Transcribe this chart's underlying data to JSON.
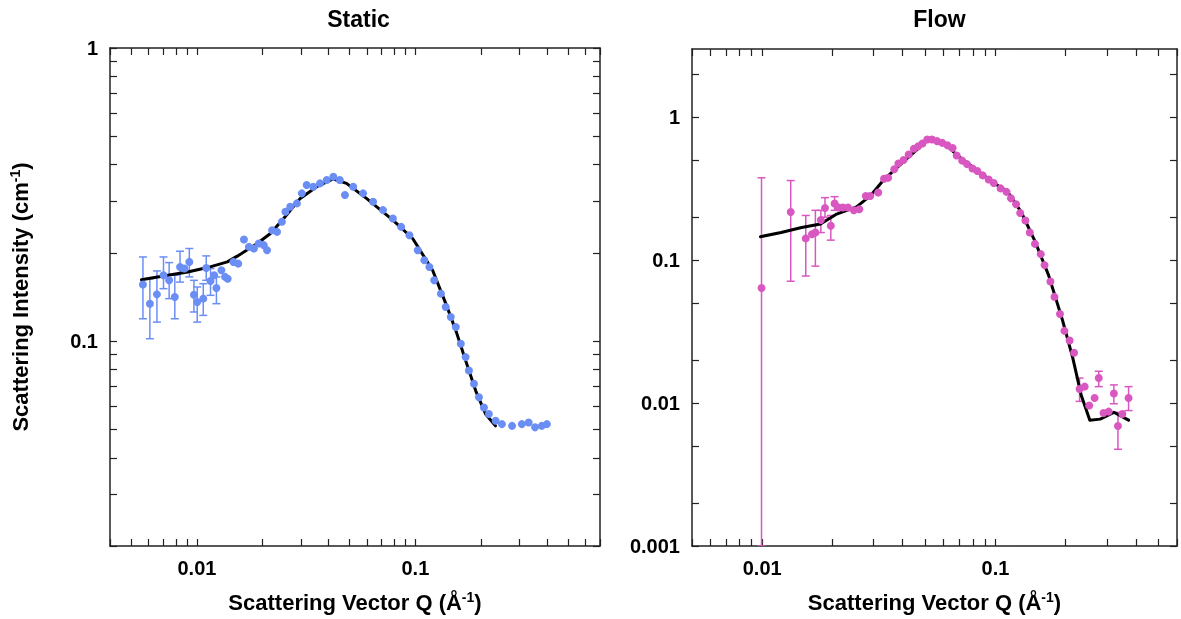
{
  "chart_data": [
    {
      "type": "scatter",
      "title": "Static",
      "xlabel": "Scattering Vector Q (Å$^{-1}$)",
      "ylabel": "Scattering Intensity (cm$^{-1}$)",
      "log": "xy",
      "marker": "circle",
      "xlim": [
        0.004,
        0.7
      ],
      "ylim": [
        0.02,
        1
      ],
      "xticks": [
        {
          "value": 0.004,
          "label": null
        },
        {
          "value": 0.005,
          "label": null
        },
        {
          "value": 0.006,
          "label": null
        },
        {
          "value": 0.007,
          "label": null
        },
        {
          "value": 0.008,
          "label": null
        },
        {
          "value": 0.009,
          "label": null
        },
        {
          "value": 0.01,
          "label": "0.01"
        },
        {
          "value": 0.02,
          "label": null
        },
        {
          "value": 0.03,
          "label": null
        },
        {
          "value": 0.04,
          "label": null
        },
        {
          "value": 0.05,
          "label": null
        },
        {
          "value": 0.06,
          "label": null
        },
        {
          "value": 0.07,
          "label": null
        },
        {
          "value": 0.08,
          "label": null
        },
        {
          "value": 0.09,
          "label": null
        },
        {
          "value": 0.1,
          "label": "0.1"
        },
        {
          "value": 0.2,
          "label": null
        },
        {
          "value": 0.3,
          "label": null
        },
        {
          "value": 0.4,
          "label": null
        },
        {
          "value": 0.5,
          "label": null
        },
        {
          "value": 0.6,
          "label": null
        },
        {
          "value": 0.7,
          "label": null
        }
      ],
      "yticks": [
        {
          "value": 0.02,
          "label": null
        },
        {
          "value": 0.03,
          "label": null
        },
        {
          "value": 0.04,
          "label": null
        },
        {
          "value": 0.05,
          "label": null
        },
        {
          "value": 0.06,
          "label": null
        },
        {
          "value": 0.07,
          "label": null
        },
        {
          "value": 0.08,
          "label": null
        },
        {
          "value": 0.09,
          "label": null
        },
        {
          "value": 0.1,
          "label": "0.1"
        },
        {
          "value": 0.2,
          "label": null
        },
        {
          "value": 0.3,
          "label": null
        },
        {
          "value": 0.4,
          "label": null
        },
        {
          "value": 0.5,
          "label": null
        },
        {
          "value": 0.6,
          "label": null
        },
        {
          "value": 0.7,
          "label": null
        },
        {
          "value": 0.8,
          "label": null
        },
        {
          "value": 0.9,
          "label": null
        },
        {
          "value": 1,
          "label": "1"
        }
      ],
      "series": [
        {
          "color": "#6b8ef5",
          "x": [
            0.00566,
            0.00609,
            0.00656,
            0.00703,
            0.00746,
            0.00792,
            0.00837,
            0.00876,
            0.00923,
            0.00969,
            0.01003,
            0.01069,
            0.01103,
            0.01154,
            0.01199,
            0.01228,
            0.01294,
            0.01345,
            0.01383,
            0.01468,
            0.01545,
            0.01641,
            0.01729,
            0.01823,
            0.01919,
            0.02023,
            0.02094,
            0.02208,
            0.02327,
            0.02449,
            0.02541,
            0.02673,
            0.02868,
            0.0302,
            0.0318,
            0.0341,
            0.0366,
            0.0393,
            0.0421,
            0.0451,
            0.0476,
            0.0519,
            0.0576,
            0.064,
            0.0711,
            0.0789,
            0.0861,
            0.0939,
            0.1025,
            0.1099,
            0.1159,
            0.1219,
            0.1309,
            0.1377,
            0.1452,
            0.1531,
            0.1614,
            0.1698,
            0.1758,
            0.1854,
            0.1954,
            0.206,
            0.217,
            0.233,
            0.249,
            0.277,
            0.307,
            0.33,
            0.353,
            0.379,
            0.4
          ],
          "values": [
            0.156,
            0.1342,
            0.1444,
            0.1678,
            0.1612,
            0.1414,
            0.1791,
            0.1768,
            0.1863,
            0.144,
            0.136,
            0.1396,
            0.1777,
            0.1604,
            0.1678,
            0.1518,
            0.1744,
            0.1656,
            0.1633,
            0.1863,
            0.1838,
            0.2221,
            0.2097,
            0.2069,
            0.2153,
            0.2125,
            0.2042,
            0.239,
            0.2359,
            0.2553,
            0.2763,
            0.2873,
            0.295,
            0.3192,
            0.3407,
            0.3363,
            0.3452,
            0.3545,
            0.3639,
            0.3545,
            0.315,
            0.3363,
            0.3192,
            0.2988,
            0.2799,
            0.262,
            0.2453,
            0.2298,
            0.2042,
            0.1888,
            0.1791,
            0.1612,
            0.1452,
            0.1307,
            0.1208,
            0.1117,
            0.098,
            0.0882,
            0.0794,
            0.0715,
            0.0643,
            0.0594,
            0.0564,
            0.0535,
            0.0521,
            0.0514,
            0.0521,
            0.0528,
            0.0508,
            0.0514,
            0.0521
          ],
          "errors": [
            [
              0.1192,
              0.1937
            ],
            [
              0.1019,
              0.1633
            ],
            [
              0.1161,
              0.1736
            ],
            [
              0.151,
              0.1937
            ],
            [
              0.1396,
              0.1853
            ],
            [
              0.1192,
              0.1678
            ],
            [
              0.159,
              0.2026
            ],
            null,
            [
              0.1656,
              0.207
            ],
            [
              0.1257,
              0.1612
            ],
            [
              0.1161,
              0.153
            ],
            [
              0.1224,
              0.157
            ],
            [
              0.1612,
              0.1953
            ],
            [
              0.1433,
              0.1768
            ],
            null,
            [
              0.1342,
              0.1656
            ],
            null,
            null,
            null,
            null,
            null,
            null,
            null,
            null,
            null,
            null,
            null,
            null,
            null,
            null,
            null,
            null,
            null,
            null,
            null,
            null,
            null,
            null,
            null,
            null,
            null,
            null,
            null,
            null,
            null,
            null,
            null,
            null,
            null,
            null,
            null,
            null,
            null,
            null,
            null,
            null,
            null,
            null,
            null,
            null,
            null,
            null,
            null,
            null,
            null,
            null,
            null,
            null,
            null,
            null,
            null
          ]
        },
        {
          "type": "line",
          "color": "#000000",
          "marker": "none",
          "line_style": "solid",
          "x": [
            0.00557,
            0.00736,
            0.00907,
            0.01118,
            0.01378,
            0.0153,
            0.01887,
            0.0217,
            0.02495,
            0.0297,
            0.03535,
            0.0421,
            0.0484,
            0.0597,
            0.0789,
            0.0972,
            0.1199,
            0.1378,
            0.1531,
            0.1699,
            0.1887,
            0.2095,
            0.2326
          ],
          "values": [
            0.162,
            0.1678,
            0.1722,
            0.1782,
            0.1863,
            0.1949,
            0.2153,
            0.2328,
            0.262,
            0.3068,
            0.3363,
            0.3573,
            0.3452,
            0.3068,
            0.2586,
            0.2239,
            0.1744,
            0.1342,
            0.1088,
            0.0858,
            0.0678,
            0.0564,
            0.0514
          ]
        }
      ]
    },
    {
      "type": "scatter",
      "title": "Flow",
      "xlabel": "Scattering Vector Q (Å$^{-1}$)",
      "log": "xy",
      "marker": "circle",
      "xlim": [
        0.005,
        0.6
      ],
      "ylim": [
        0.001,
        3
      ],
      "xticks": [
        {
          "value": 0.005,
          "label": null
        },
        {
          "value": 0.006,
          "label": null
        },
        {
          "value": 0.007,
          "label": null
        },
        {
          "value": 0.008,
          "label": null
        },
        {
          "value": 0.009,
          "label": null
        },
        0.01,
        {
          "value": 0.02,
          "label": null
        },
        {
          "value": 0.03,
          "label": null
        },
        {
          "value": 0.04,
          "label": null
        },
        {
          "value": 0.05,
          "label": null
        },
        {
          "value": 0.06,
          "label": null
        },
        {
          "value": 0.07,
          "label": null
        },
        {
          "value": 0.08,
          "label": null
        },
        {
          "value": 0.09,
          "label": null
        },
        0.1,
        {
          "value": 0.2,
          "label": null
        },
        {
          "value": 0.3,
          "label": null
        },
        {
          "value": 0.4,
          "label": null
        },
        {
          "value": 0.5,
          "label": null
        },
        {
          "value": 0.6,
          "label": null
        }
      ],
      "yticks": [
        0.001,
        {
          "value": 0.002,
          "label": null
        },
        {
          "value": 0.005,
          "label": null
        },
        0.01,
        {
          "value": 0.02,
          "label": null
        },
        {
          "value": 0.05,
          "label": null
        },
        0.1,
        {
          "value": 0.2,
          "label": null
        },
        {
          "value": 0.5,
          "label": null
        },
        1,
        {
          "value": 2,
          "label": null
        }
      ],
      "series": [
        {
          "color": "#d957c0",
          "x": [
            0.00993,
            0.01325,
            0.01537,
            0.01634,
            0.0169,
            0.01784,
            0.01858,
            0.01968,
            0.02043,
            0.02128,
            0.02216,
            0.0233,
            0.0247,
            0.02608,
            0.02781,
            0.02905,
            0.03141,
            0.03327,
            0.03465,
            0.03682,
            0.03835,
            0.04035,
            0.04245,
            0.04467,
            0.04668,
            0.04862,
            0.05098,
            0.05345,
            0.05623,
            0.05915,
            0.06224,
            0.06549,
            0.0682,
            0.072,
            0.07549,
            0.0797,
            0.0836,
            0.0882,
            0.0935,
            0.0983,
            0.1052,
            0.1115,
            0.1165,
            0.1225,
            0.1276,
            0.1343,
            0.1403,
            0.1476,
            0.1563,
            0.1623,
            0.172,
            0.179,
            0.189,
            0.1975,
            0.2078,
            0.2172,
            0.2293,
            0.2412,
            0.2521,
            0.266,
            0.2772,
            0.2905,
            0.3057,
            0.3217,
            0.335,
            0.35,
            0.372
          ],
          "values": [
            0.0638,
            0.2171,
            0.1419,
            0.1517,
            0.1559,
            0.1911,
            0.2319,
            0.174,
            0.249,
            0.2332,
            0.2332,
            0.2332,
            0.2231,
            0.2268,
            0.2812,
            0.2812,
            0.2972,
            0.3706,
            0.3767,
            0.4324,
            0.4749,
            0.502,
            0.5482,
            0.6021,
            0.6257,
            0.654,
            0.6988,
            0.6988,
            0.6797,
            0.6613,
            0.6365,
            0.6089,
            0.5392,
            0.4965,
            0.4696,
            0.4371,
            0.4206,
            0.3916,
            0.3664,
            0.3468,
            0.3176,
            0.3004,
            0.2706,
            0.2463,
            0.2135,
            0.1891,
            0.1559,
            0.13,
            0.1101,
            0.0923,
            0.0709,
            0.0553,
            0.042,
            0.032,
            0.0274,
            0.0225,
            0.01253,
            0.01303,
            0.00962,
            0.01086,
            0.01496,
            0.00852,
            0.00871,
            0.01167,
            0.00691,
            0.00838,
            0.01086
          ],
          "errors": [
            [
              0.001,
              0.3767
            ],
            [
              0.0712,
              0.3604
            ],
            [
              0.0774,
              0.2054
            ],
            null,
            [
              0.0908,
              0.2231
            ],
            [
              0.1559,
              0.2231
            ],
            [
              0.1998,
              0.2736
            ],
            [
              0.138,
              0.2054
            ],
            [
              0.2231,
              0.278
            ],
            null,
            null,
            null,
            null,
            null,
            null,
            null,
            null,
            null,
            null,
            null,
            null,
            null,
            null,
            null,
            null,
            null,
            null,
            null,
            null,
            null,
            null,
            null,
            null,
            null,
            null,
            null,
            null,
            null,
            null,
            null,
            null,
            null,
            null,
            null,
            null,
            null,
            null,
            null,
            null,
            null,
            null,
            null,
            null,
            null,
            null,
            null,
            [
              0.01028,
              0.01496
            ],
            null,
            null,
            null,
            [
              0.01303,
              0.0167
            ],
            null,
            null,
            [
              0.00989,
              0.0134
            ],
            [
              0.00475,
              0.00862
            ],
            null,
            [
              0.00886,
              0.01303
            ]
          ]
        },
        {
          "type": "line",
          "color": "#000000",
          "marker": "none",
          "line_style": "solid",
          "x": [
            0.00983,
            0.01205,
            0.01476,
            0.01778,
            0.0207,
            0.02537,
            0.02905,
            0.03327,
            0.04075,
            0.05167,
            0.05915,
            0.07011,
            0.08025,
            0.0983,
            0.1126,
            0.1289,
            0.1476,
            0.169,
            0.1936,
            0.2143,
            0.2331,
            0.2538,
            0.281,
            0.3217,
            0.372
          ],
          "values": [
            0.1459,
            0.1559,
            0.1693,
            0.179,
            0.2088,
            0.2358,
            0.2812,
            0.3664,
            0.4965,
            0.6988,
            0.6723,
            0.5246,
            0.4445,
            0.3468,
            0.302,
            0.2171,
            0.1358,
            0.0782,
            0.0382,
            0.0208,
            0.01135,
            0.00759,
            0.00772,
            0.00862,
            0.00759
          ]
        }
      ]
    }
  ]
}
